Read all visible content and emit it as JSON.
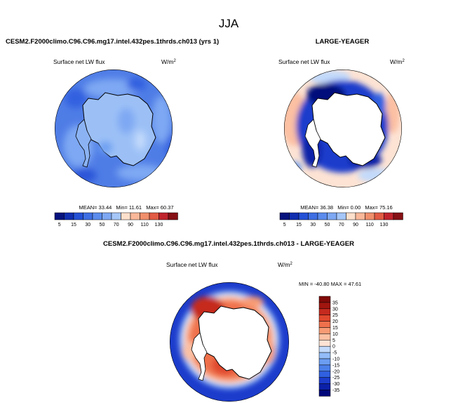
{
  "season": "JJA",
  "units_base": "W/m",
  "units_exp": "2",
  "colors": {
    "abs_scale": [
      "#06137e",
      "#102eb0",
      "#2450d6",
      "#3e6fe3",
      "#5b8ced",
      "#7ea8f3",
      "#a5c6f8",
      "#fde0cc",
      "#f9b899",
      "#f08f6c",
      "#e25a43",
      "#c0232c",
      "#861015"
    ],
    "diff_scale": [
      "#00087a",
      "#0b20a8",
      "#1c3ccc",
      "#3060e0",
      "#4b80ea",
      "#6b9df2",
      "#93bcf8",
      "#c3dafb",
      "#f2f7fe",
      "#fde3d4",
      "#fcc0a3",
      "#f79b74",
      "#ef714c",
      "#e0482d",
      "#c52a1e",
      "#a1150f",
      "#800a08"
    ],
    "continent": "#ffffff",
    "coast": "#000000"
  },
  "panels": [
    {
      "id": "model",
      "title": "CESM2.F2000climo.C96.C96.mg17.intel.432pes.1thrds.ch013 (yrs 1)",
      "variable": "Surface net LW flux",
      "stats": {
        "mean_label": "MEAN=",
        "mean": "33.44",
        "min_label": "Min=",
        "min": "11.61",
        "max_label": "Max=",
        "max": "60.37"
      },
      "colorbar_labels": [
        "5",
        "15",
        "30",
        "50",
        "70",
        "90",
        "110",
        "130"
      ]
    },
    {
      "id": "obs",
      "title": "LARGE-YEAGER",
      "variable": "Surface net LW flux",
      "stats": {
        "mean_label": "MEAN=",
        "mean": "36.38",
        "min_label": "Min=",
        "min": "0.00",
        "max_label": "Max=",
        "max": "75.16"
      },
      "colorbar_labels": [
        "5",
        "15",
        "30",
        "50",
        "70",
        "90",
        "110",
        "130"
      ]
    },
    {
      "id": "diff",
      "title": "CESM2.F2000climo.C96.C96.mg17.intel.432pes.1thrds.ch013 - LARGE-YEAGER",
      "variable": "Surface net LW flux",
      "stats_text": "MIN = -40.80 MAX =  47.61",
      "colorbar_labels": [
        "35",
        "30",
        "25",
        "20",
        "15",
        "10",
        "5",
        "0",
        "-5",
        "-10",
        "-15",
        "-20",
        "-25",
        "-30",
        "-35"
      ]
    }
  ],
  "chart_data": [
    {
      "type": "heatmap",
      "title": "CESM2.F2000climo.C96.C96.mg17.intel.432pes.1thrds.ch013 (yrs 1)",
      "variable": "Surface net LW flux",
      "units": "W/m2",
      "projection": "south polar stereographic",
      "levels": [
        5,
        15,
        30,
        50,
        70,
        90,
        110,
        130
      ],
      "mean": 33.44,
      "min": 11.61,
      "max": 60.37
    },
    {
      "type": "heatmap",
      "title": "LARGE-YEAGER",
      "variable": "Surface net LW flux",
      "units": "W/m2",
      "projection": "south polar stereographic",
      "levels": [
        5,
        15,
        30,
        50,
        70,
        90,
        110,
        130
      ],
      "mean": 36.38,
      "min": 0.0,
      "max": 75.16
    },
    {
      "type": "heatmap",
      "title": "CESM2.F2000climo.C96.C96.mg17.intel.432pes.1thrds.ch013 - LARGE-YEAGER",
      "variable": "Surface net LW flux",
      "units": "W/m2",
      "projection": "south polar stereographic",
      "levels": [
        -35,
        -30,
        -25,
        -20,
        -15,
        -10,
        -5,
        0,
        5,
        10,
        15,
        20,
        25,
        30,
        35
      ],
      "min": -40.8,
      "max": 47.61
    }
  ]
}
